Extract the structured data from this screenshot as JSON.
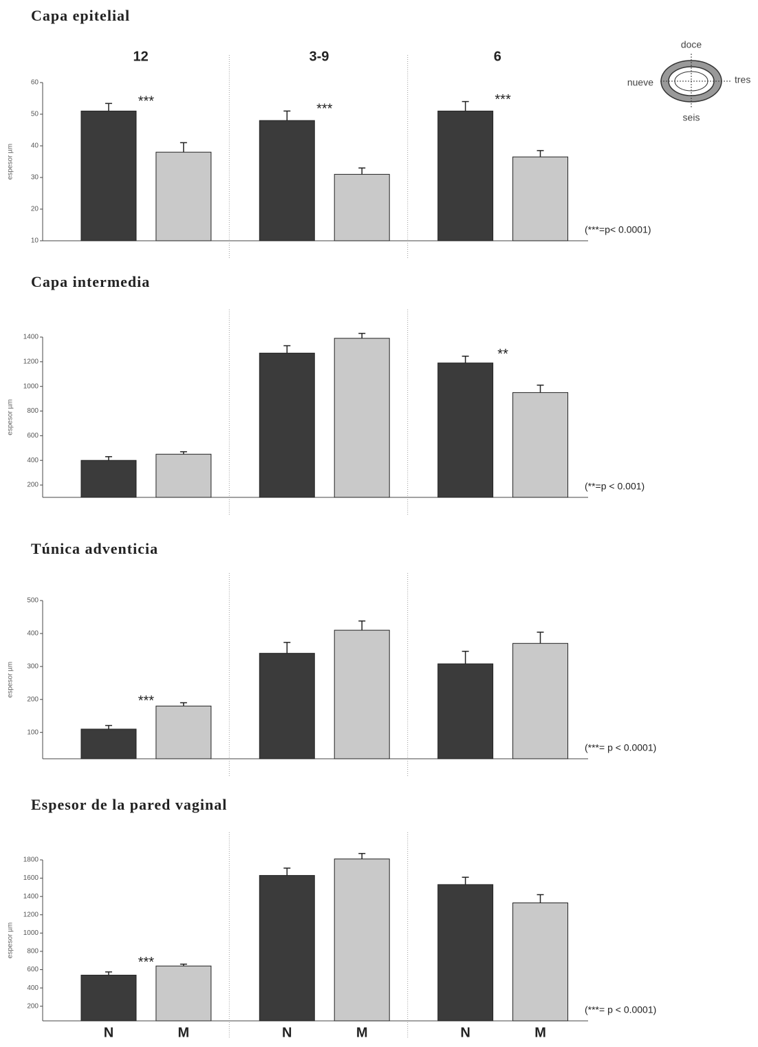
{
  "chart_data": [
    {
      "type": "bar",
      "title": "Capa epitelial",
      "y_label": "espesor µm",
      "categories": [
        "12",
        "3-9",
        "6"
      ],
      "series": [
        {
          "color": "#3b3b3b",
          "values": [
            51,
            48,
            51
          ],
          "errors": [
            2.4,
            3,
            3
          ]
        },
        {
          "color": "#c9c9c9",
          "values": [
            38,
            31,
            36.5
          ],
          "errors": [
            3,
            2,
            2
          ]
        }
      ],
      "significance": [
        "***",
        "***",
        "***"
      ],
      "note": "(***=p< 0.0001)",
      "ylim": [
        10,
        60
      ],
      "yticks": [
        10,
        20,
        30,
        40,
        50,
        60
      ],
      "inset": {
        "top": "doce",
        "left": "nueve",
        "right": "tres",
        "bottom": "seis"
      }
    },
    {
      "type": "bar",
      "title": "Capa intermedia",
      "y_label": "espesor µm",
      "categories": [
        null,
        null,
        null
      ],
      "series": [
        {
          "color": "#3b3b3b",
          "values": [
            400,
            1270,
            1190
          ],
          "errors": [
            30,
            60,
            55
          ]
        },
        {
          "color": "#c9c9c9",
          "values": [
            450,
            1390,
            950
          ],
          "errors": [
            20,
            40,
            60
          ]
        }
      ],
      "significance": [
        null,
        null,
        "**"
      ],
      "note": "(**=p < 0.001)",
      "ylim": [
        100,
        1400
      ],
      "yticks": [
        200,
        400,
        600,
        800,
        1000,
        1200,
        1400
      ]
    },
    {
      "type": "bar",
      "title": "Túnica adventicia",
      "y_label": "espesor µm",
      "categories": [
        null,
        null,
        null
      ],
      "series": [
        {
          "color": "#3b3b3b",
          "values": [
            110,
            340,
            308
          ],
          "errors": [
            11,
            33,
            38
          ]
        },
        {
          "color": "#c9c9c9",
          "values": [
            180,
            410,
            370
          ],
          "errors": [
            10,
            28,
            34
          ]
        }
      ],
      "significance": [
        "***",
        null,
        null
      ],
      "note": "(***= p < 0.0001)",
      "ylim": [
        20,
        500
      ],
      "yticks": [
        100,
        200,
        300,
        400,
        500
      ]
    },
    {
      "type": "bar",
      "title": "Espesor de la pared vaginal",
      "y_label": "espesor µm",
      "categories": [
        null,
        null,
        null
      ],
      "series": [
        {
          "name": "N",
          "color": "#3b3b3b",
          "values": [
            540,
            1630,
            1530
          ],
          "errors": [
            35,
            80,
            80
          ]
        },
        {
          "name": "M",
          "color": "#c9c9c9",
          "values": [
            640,
            1810,
            1330
          ],
          "errors": [
            20,
            60,
            90
          ]
        }
      ],
      "significance": [
        "***",
        null,
        null
      ],
      "note": "(***= p < 0.0001)",
      "ylim": [
        40,
        1800
      ],
      "yticks": [
        200,
        400,
        600,
        800,
        1000,
        1200,
        1400,
        1600,
        1800
      ]
    }
  ]
}
